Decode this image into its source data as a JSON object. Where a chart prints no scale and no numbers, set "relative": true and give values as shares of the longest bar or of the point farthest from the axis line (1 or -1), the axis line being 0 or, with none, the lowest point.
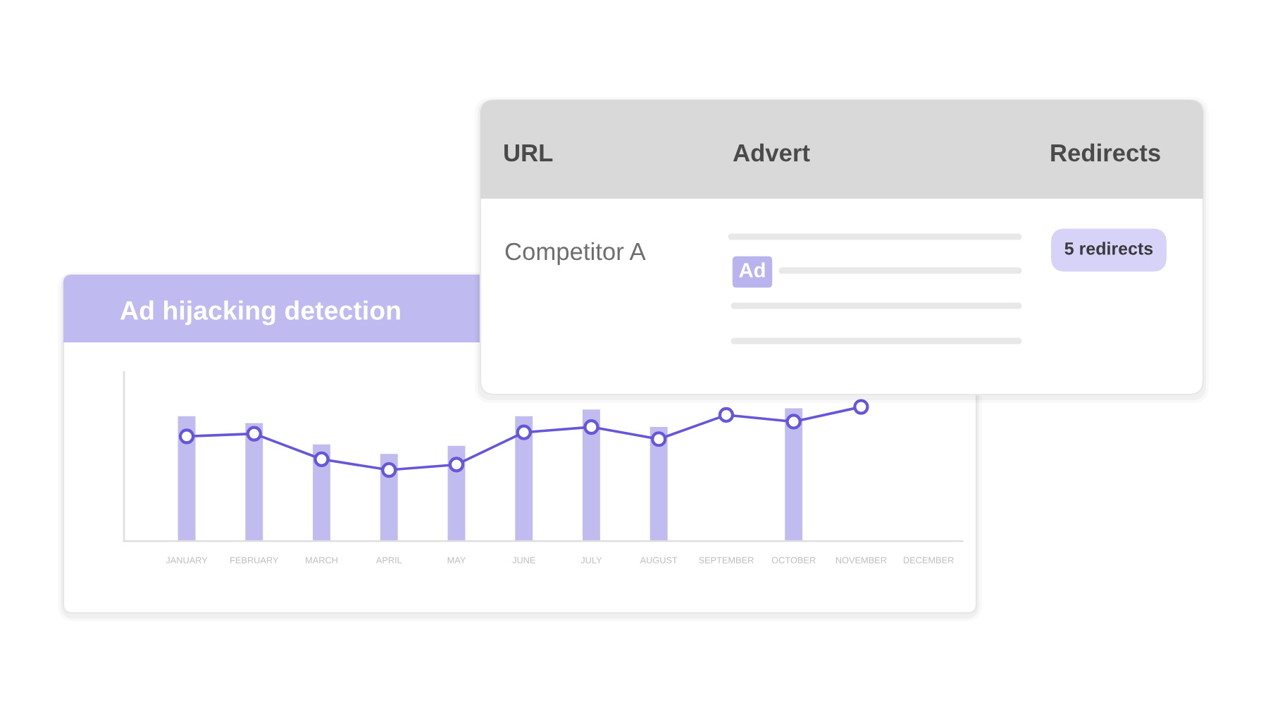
{
  "chart_data": [
    {
      "type": "other",
      "categories": [
        "URL",
        "Advert",
        "Redirects"
      ],
      "annotations": [
        "Competitor A",
        "Ad",
        "5 redirects"
      ]
    },
    {
      "type": "bar",
      "title": "Ad hijacking detection",
      "relative": true,
      "marker": "circle",
      "categories": [
        "JANUARY",
        "FEBRUARY",
        "MARCH",
        "APRIL",
        "MAY",
        "JUNE",
        "JULY",
        "AUGUST",
        "SEPTEMBER",
        "OCTOBER",
        "NOVEMBER",
        "DECEMBER"
      ],
      "series": [
        {
          "type": "bar",
          "color": "#c1bcf0",
          "values": [
            0.93,
            0.88,
            0.72,
            0.65,
            0.71,
            0.93,
            0.98,
            0.85,
            null,
            0.99,
            null,
            null
          ]
        },
        {
          "type": "line",
          "color": "#6656d8",
          "values": [
            0.78,
            0.8,
            0.61,
            0.53,
            0.57,
            0.81,
            0.85,
            0.76,
            0.94,
            0.89,
            1,
            null
          ]
        }
      ]
    }
  ]
}
